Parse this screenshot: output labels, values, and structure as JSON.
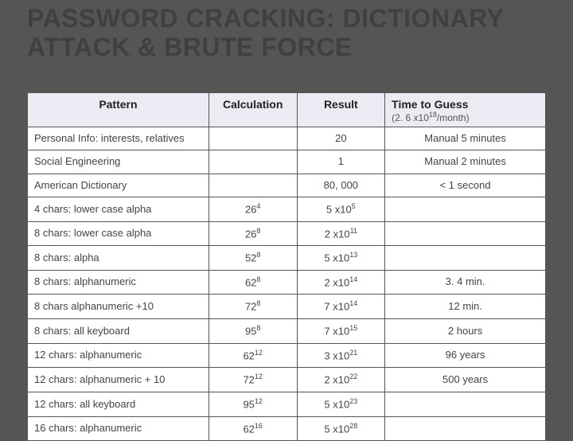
{
  "title": "PASSWORD CRACKING: DICTIONARY ATTACK & BRUTE FORCE",
  "table": {
    "type": "table",
    "background_color": "#ffffff",
    "border_color": "#555555",
    "header_bg": "#ecebf4",
    "header_fontsize": 14,
    "body_fontsize": 13,
    "columns": [
      {
        "label": "Pattern",
        "align": "center",
        "width_pct": 35
      },
      {
        "label": "Calculation",
        "align": "center",
        "width_pct": 17
      },
      {
        "label": "Result",
        "align": "center",
        "width_pct": 17
      },
      {
        "label": "Time to Guess",
        "sub": "(2. 6 x10",
        "sub_sup": "18",
        "sub_tail": "/month)",
        "align": "left",
        "width_pct": 31
      }
    ],
    "rows": [
      {
        "pattern": "Personal Info: interests, relatives",
        "calc_base": "",
        "calc_exp": "",
        "result_txt": "20",
        "result_base": "",
        "result_exp": "",
        "time": "Manual 5 minutes"
      },
      {
        "pattern": "Social Engineering",
        "calc_base": "",
        "calc_exp": "",
        "result_txt": "1",
        "result_base": "",
        "result_exp": "",
        "time": "Manual 2 minutes"
      },
      {
        "pattern": "American Dictionary",
        "calc_base": "",
        "calc_exp": "",
        "result_txt": "80, 000",
        "result_base": "",
        "result_exp": "",
        "time": "< 1 second"
      },
      {
        "pattern": "4 chars: lower case alpha",
        "calc_base": "26",
        "calc_exp": "4",
        "result_txt": "",
        "result_base": "5 x10",
        "result_exp": "5",
        "time": ""
      },
      {
        "pattern": "8 chars: lower case alpha",
        "calc_base": "26",
        "calc_exp": "8",
        "result_txt": "",
        "result_base": "2 x10",
        "result_exp": "11",
        "time": ""
      },
      {
        "pattern": "8 chars: alpha",
        "calc_base": "52",
        "calc_exp": "8",
        "result_txt": "",
        "result_base": "5 x10",
        "result_exp": "13",
        "time": ""
      },
      {
        "pattern": "8 chars: alphanumeric",
        "calc_base": "62",
        "calc_exp": "8",
        "result_txt": "",
        "result_base": "2 x10",
        "result_exp": "14",
        "time": "3. 4 min."
      },
      {
        "pattern": "8 chars alphanumeric +10",
        "calc_base": "72",
        "calc_exp": "8",
        "result_txt": "",
        "result_base": "7 x10",
        "result_exp": "14",
        "time": "12 min."
      },
      {
        "pattern": "8 chars: all keyboard",
        "calc_base": "95",
        "calc_exp": "8",
        "result_txt": "",
        "result_base": "7 x10",
        "result_exp": "15",
        "time": "2 hours"
      },
      {
        "pattern": "12 chars: alphanumeric",
        "calc_base": "62",
        "calc_exp": "12",
        "result_txt": "",
        "result_base": "3 x10",
        "result_exp": "21",
        "time": "96 years"
      },
      {
        "pattern": "12 chars: alphanumeric + 10",
        "calc_base": "72",
        "calc_exp": "12",
        "result_txt": "",
        "result_base": "2 x10",
        "result_exp": "22",
        "time": "500 years"
      },
      {
        "pattern": "12 chars: all keyboard",
        "calc_base": "95",
        "calc_exp": "12",
        "result_txt": "",
        "result_base": "5 x10",
        "result_exp": "23",
        "time": ""
      },
      {
        "pattern": "16 chars: alphanumeric",
        "calc_base": "62",
        "calc_exp": "16",
        "result_txt": "",
        "result_base": "5 x10",
        "result_exp": "28",
        "time": ""
      }
    ]
  },
  "colors": {
    "slide_bg": "#555555",
    "title_color": "#40403e",
    "text_color": "#444444"
  },
  "typography": {
    "title_fontsize": 32,
    "title_weight": 900
  }
}
